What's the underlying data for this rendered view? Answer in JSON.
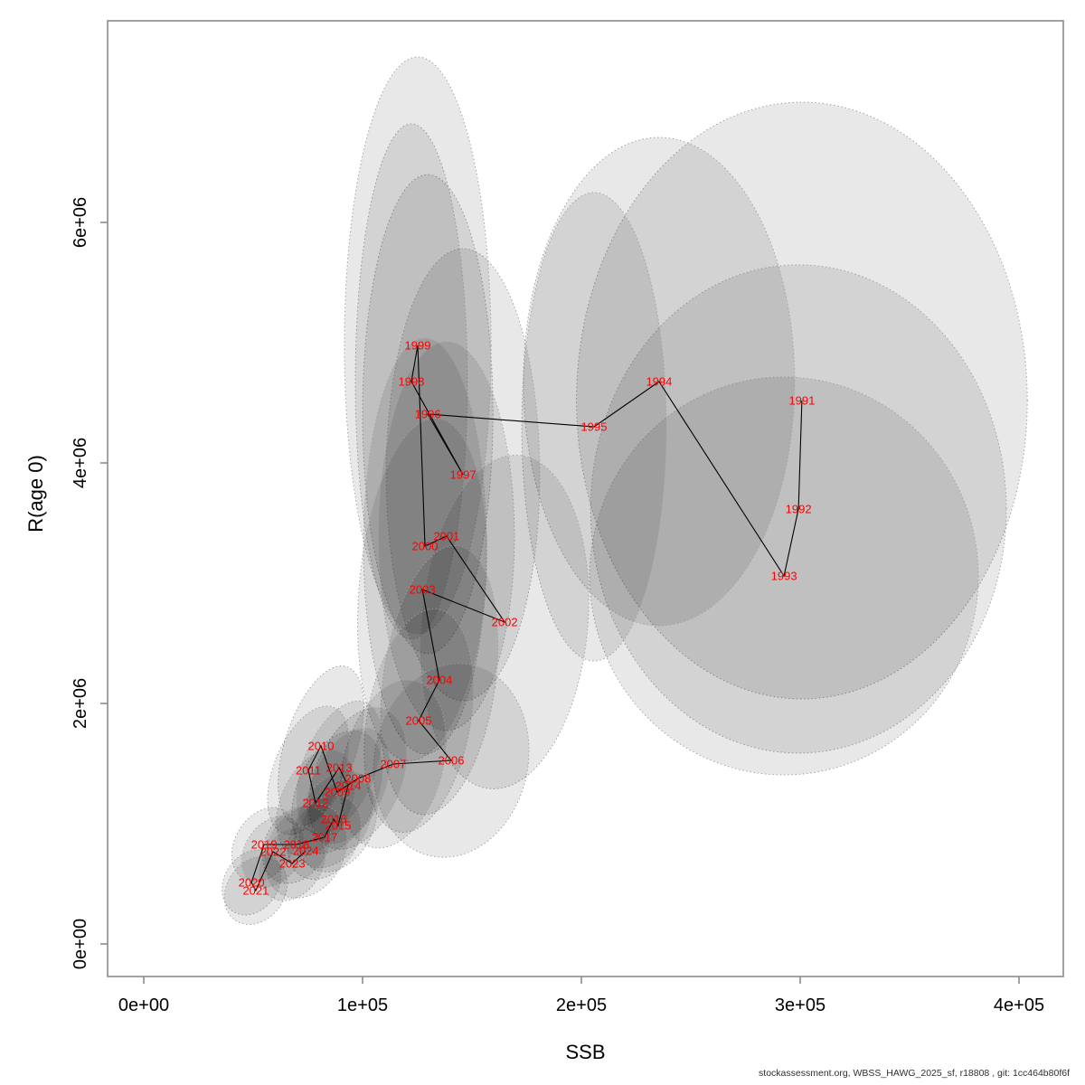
{
  "footer": {
    "text": "stockassessment.org, WBSS_HAWG_2025_sf, r18808 , git: 1cc464b80f6f"
  },
  "chart_data": {
    "type": "scatter",
    "title": "",
    "xlabel": "SSB",
    "ylabel": "R(age 0)",
    "legend": "none",
    "grid": false,
    "x_axis": {
      "tick_values": [
        0,
        100000,
        200000,
        300000,
        400000
      ],
      "tick_labels": [
        "0e+00",
        "1e+05",
        "2e+05",
        "3e+05",
        "4e+05"
      ],
      "range": [
        -16500,
        424000
      ]
    },
    "y_axis": {
      "tick_values": [
        0,
        2000000,
        4000000,
        6000000
      ],
      "tick_labels": [
        "0e+00",
        "2e+06",
        "4e+06",
        "6e+06"
      ],
      "range": [
        -180000,
        7690000
      ]
    },
    "colors": {
      "year_label": "#FF0000",
      "line": "#000000",
      "ellipse_fill": "#000000",
      "ellipse_fill_opacity": 0.09,
      "ellipse_stroke": "#A0A0A0",
      "axis": "#8A8A8A",
      "tick_label": "#000000",
      "footer": "#303030"
    },
    "series_name": "SSB-Recruitment pairs with uncertainty ellipses, connected chronologically",
    "points": [
      {
        "year": 1991,
        "ssb": 300800,
        "rec": 4519000,
        "ellipse": {
          "sx": 103000,
          "sy": 2481000,
          "rot": 0
        }
      },
      {
        "year": 1992,
        "ssb": 299200,
        "rec": 3617000,
        "ellipse": {
          "sx": 95000,
          "sy": 2030000,
          "rot": 0
        }
      },
      {
        "year": 1993,
        "ssb": 292600,
        "rec": 3060000,
        "ellipse": {
          "sx": 88800,
          "sy": 1654000,
          "rot": 0
        }
      },
      {
        "year": 1994,
        "ssb": 235500,
        "rec": 4677000,
        "ellipse": {
          "sx": 62000,
          "sy": 2030000,
          "rot": 0
        }
      },
      {
        "year": 1995,
        "ssb": 205800,
        "rec": 4301000,
        "ellipse": {
          "sx": 33000,
          "sy": 1947000,
          "rot": 0
        }
      },
      {
        "year": 1996,
        "ssb": 129800,
        "rec": 4406000,
        "ellipse": {
          "sx": 29800,
          "sy": 1992000,
          "rot": 0
        }
      },
      {
        "year": 1997,
        "ssb": 145900,
        "rec": 3902000,
        "ellipse": {
          "sx": 35100,
          "sy": 1880000,
          "rot": 0
        }
      },
      {
        "year": 1998,
        "ssb": 122300,
        "rec": 4677000,
        "ellipse": {
          "sx": 25600,
          "sy": 2143000,
          "rot": 0
        }
      },
      {
        "year": 1999,
        "ssb": 125200,
        "rec": 4977000,
        "ellipse": {
          "sx": 33500,
          "sy": 2399000,
          "rot": 0
        }
      },
      {
        "year": 2000,
        "ssb": 128500,
        "rec": 3308000,
        "ellipse": {
          "sx": 28100,
          "sy": 1729000,
          "rot": 0
        }
      },
      {
        "year": 2001,
        "ssb": 138400,
        "rec": 3391000,
        "ellipse": {
          "sx": 31000,
          "sy": 1617000,
          "rot": 0
        }
      },
      {
        "year": 2002,
        "ssb": 164900,
        "rec": 2677000,
        "ellipse": {
          "sx": 38000,
          "sy": 1391000,
          "rot": 5
        }
      },
      {
        "year": 2003,
        "ssb": 127300,
        "rec": 2947000,
        "ellipse": {
          "sx": 28900,
          "sy": 1429000,
          "rot": 5
        }
      },
      {
        "year": 2004,
        "ssb": 135100,
        "rec": 2195000,
        "ellipse": {
          "sx": 25600,
          "sy": 1128000,
          "rot": 8
        }
      },
      {
        "year": 2005,
        "ssb": 125600,
        "rec": 1857000,
        "ellipse": {
          "sx": 23600,
          "sy": 940000,
          "rot": 10
        }
      },
      {
        "year": 2006,
        "ssb": 140500,
        "rec": 1526000,
        "ellipse": {
          "sx": 35100,
          "sy": 812000,
          "rot": 12
        }
      },
      {
        "year": 2007,
        "ssb": 114000,
        "rec": 1496000,
        "ellipse": {
          "sx": 22700,
          "sy": 714000,
          "rot": 15
        }
      },
      {
        "year": 2008,
        "ssb": 97900,
        "rec": 1376000,
        "ellipse": {
          "sx": 19800,
          "sy": 617000,
          "rot": 22
        }
      },
      {
        "year": 2009,
        "ssb": 88400,
        "rec": 1263000,
        "ellipse": {
          "sx": 18200,
          "sy": 541000,
          "rot": 25
        }
      },
      {
        "year": 2010,
        "ssb": 81000,
        "rec": 1647000,
        "ellipse": {
          "sx": 16500,
          "sy": 692000,
          "rot": 18
        }
      },
      {
        "year": 2011,
        "ssb": 75200,
        "rec": 1444000,
        "ellipse": {
          "sx": 15700,
          "sy": 564000,
          "rot": 22
        }
      },
      {
        "year": 2012,
        "ssb": 78500,
        "rec": 1173000,
        "ellipse": {
          "sx": 15700,
          "sy": 466000,
          "rot": 25
        }
      },
      {
        "year": 2013,
        "ssb": 89300,
        "rec": 1466000,
        "ellipse": {
          "sx": 16500,
          "sy": 586000,
          "rot": 22
        }
      },
      {
        "year": 2014,
        "ssb": 93400,
        "rec": 1316000,
        "ellipse": {
          "sx": 16500,
          "sy": 511000,
          "rot": 25
        }
      },
      {
        "year": 2015,
        "ssb": 88800,
        "rec": 985000,
        "ellipse": {
          "sx": 15700,
          "sy": 414000,
          "rot": 30
        }
      },
      {
        "year": 2016,
        "ssb": 86800,
        "rec": 1038000,
        "ellipse": {
          "sx": 15700,
          "sy": 436000,
          "rot": 30
        }
      },
      {
        "year": 2017,
        "ssb": 82600,
        "rec": 887000,
        "ellipse": {
          "sx": 14900,
          "sy": 376000,
          "rot": 32
        }
      },
      {
        "year": 2018,
        "ssb": 69800,
        "rec": 827000,
        "ellipse": {
          "sx": 14000,
          "sy": 346000,
          "rot": 32
        }
      },
      {
        "year": 2019,
        "ssb": 55000,
        "rec": 827000,
        "ellipse": {
          "sx": 13200,
          "sy": 331000,
          "rot": 32
        }
      },
      {
        "year": 2020,
        "ssb": 49200,
        "rec": 511000,
        "ellipse": {
          "sx": 12400,
          "sy": 286000,
          "rot": 32
        }
      },
      {
        "year": 2021,
        "ssb": 51200,
        "rec": 444000,
        "ellipse": {
          "sx": 13200,
          "sy": 301000,
          "rot": 35
        }
      },
      {
        "year": 2022,
        "ssb": 59100,
        "rec": 767000,
        "ellipse": {
          "sx": 12800,
          "sy": 316000,
          "rot": 33
        }
      },
      {
        "year": 2023,
        "ssb": 67800,
        "rec": 669000,
        "ellipse": {
          "sx": 13600,
          "sy": 331000,
          "rot": 33
        }
      },
      {
        "year": 2024,
        "ssb": 74000,
        "rec": 774000,
        "ellipse": {
          "sx": 17400,
          "sy": 414000,
          "rot": 30
        }
      }
    ]
  }
}
